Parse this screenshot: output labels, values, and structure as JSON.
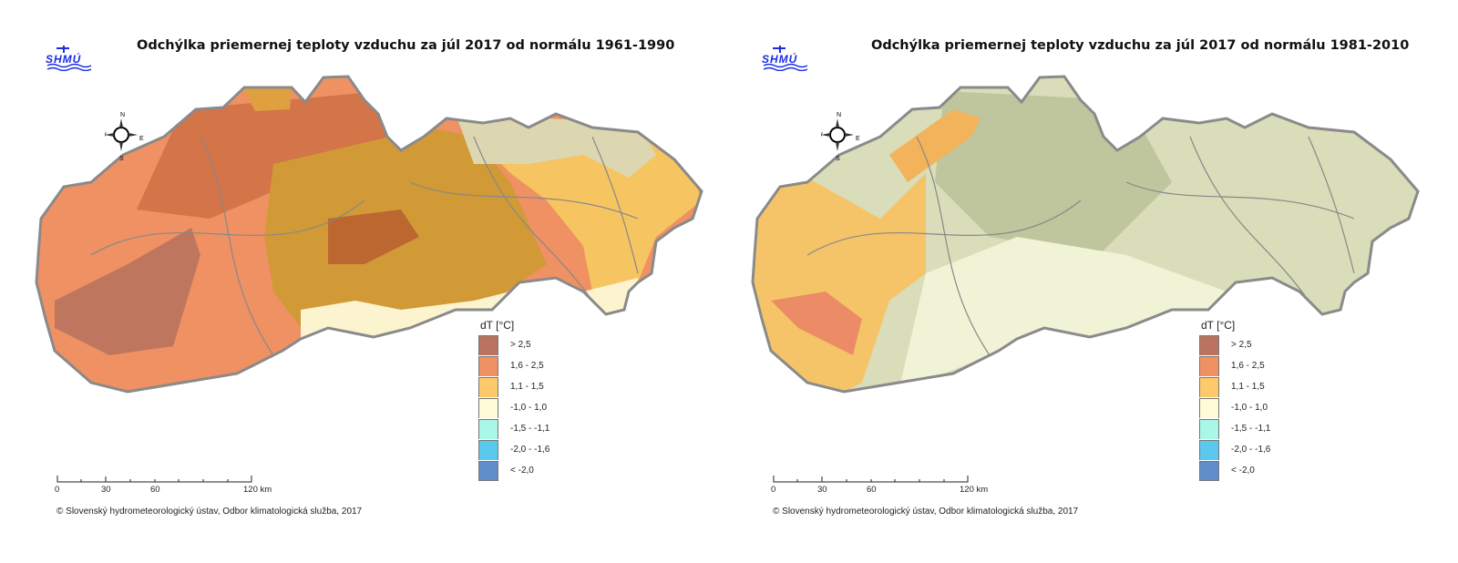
{
  "panels": [
    {
      "title": "Odchýlka priemernej teploty vzduchu za júl 2017 od normálu 1961-1990"
    },
    {
      "title": "Odchýlka priemernej teploty vzduchu za júl 2017 od normálu 1981-2010"
    }
  ],
  "logo_text": "SHMÚ",
  "compass": {
    "n": "N",
    "s": "S",
    "e": "E",
    "w": "W"
  },
  "legend": {
    "title": "dT [°C]",
    "items": [
      {
        "label": "> 2,5",
        "color": "#b9735e"
      },
      {
        "label": "1,6 - 2,5",
        "color": "#ef9163"
      },
      {
        "label": "1,1 - 1,5",
        "color": "#fdc96a"
      },
      {
        "label": "-1,0 - 1,0",
        "color": "#fefbd9"
      },
      {
        "label": "-1,5 - -1,1",
        "color": "#a9f7e6"
      },
      {
        "label": "-2,0 - -1,6",
        "color": "#5bc8ee"
      },
      {
        "label": "< -2,0",
        "color": "#5f8ecb"
      }
    ]
  },
  "scale": {
    "labels": [
      "0",
      "30",
      "60",
      "120 km"
    ]
  },
  "copyright": "© Slovenský hydrometeorologický ústav, Odbor klimatologická služba, 2017"
}
